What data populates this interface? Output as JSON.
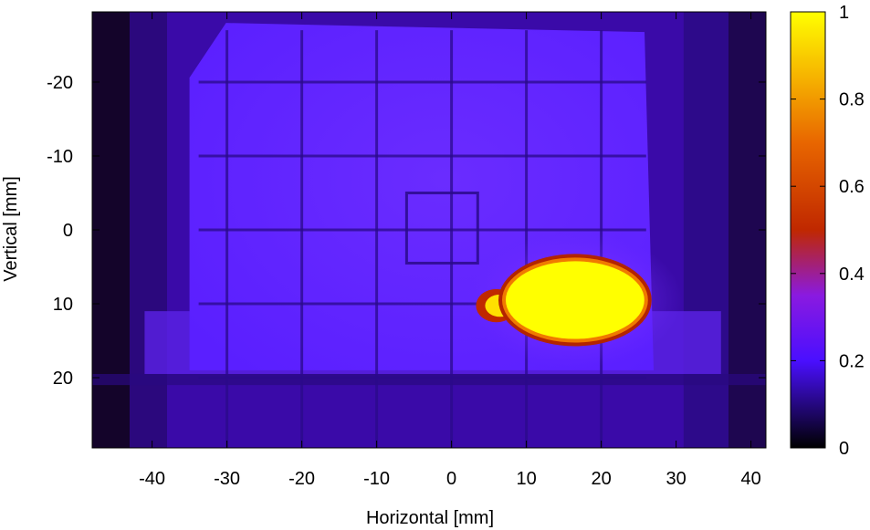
{
  "chart_data": {
    "type": "heatmap",
    "title": "",
    "xlabel": "Horizontal [mm]",
    "ylabel": "Vertical [mm]",
    "xlim": [
      -48,
      42
    ],
    "ylim": [
      -29.5,
      29.5
    ],
    "y_inverted": true,
    "x_ticks": [
      -40,
      -30,
      -20,
      -10,
      0,
      10,
      20,
      30,
      40
    ],
    "y_ticks": [
      -20,
      -10,
      0,
      10,
      20
    ],
    "x_tick_labels": [
      "-40",
      "-30",
      "-20",
      "-10",
      "0",
      "10",
      "20",
      "30",
      "40"
    ],
    "y_tick_labels": [
      "-20",
      "-10",
      "0",
      "10",
      "20"
    ],
    "colorbar": {
      "range": [
        0,
        1
      ],
      "ticks": [
        0,
        0.2,
        0.4,
        0.6,
        0.8,
        1
      ],
      "tick_labels": [
        "0",
        "0.2",
        "0.4",
        "0.6",
        "0.8",
        "1"
      ],
      "colormap": "black-blue-violet-red-orange-yellow"
    },
    "features": {
      "background_level": 0.12,
      "plate_level": 0.2,
      "plate_extent_x": [
        -35,
        27
      ],
      "plate_extent_y": [
        -28,
        19
      ],
      "grid_lines_x": [
        -30,
        -20,
        -10,
        0,
        10,
        20
      ],
      "grid_lines_y": [
        -20,
        -10,
        0,
        10,
        20
      ],
      "center_square": {
        "x": [
          -6,
          3.5
        ],
        "y": [
          -5,
          4.5
        ]
      },
      "hot_spot": {
        "center_x": 16.5,
        "center_y": 9.5,
        "half_width_x": 9.5,
        "half_height_y": 5.5,
        "level": 1.0
      },
      "hot_spot_tail": {
        "x": [
          4,
          8
        ],
        "y": [
          8,
          12.5
        ],
        "level": 0.7
      }
    }
  }
}
